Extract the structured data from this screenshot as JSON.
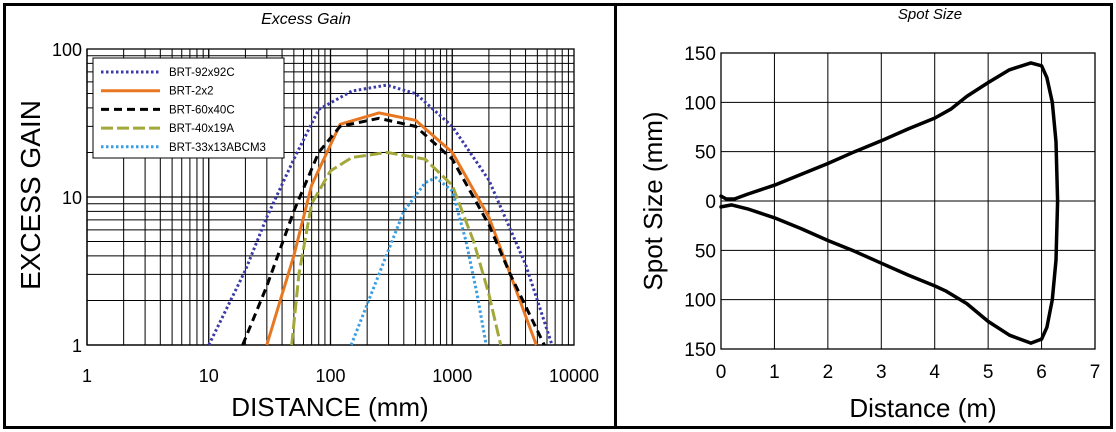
{
  "chart_data": [
    {
      "type": "line",
      "title": "Excess Gain",
      "xlabel": "DISTANCE (mm)",
      "ylabel": "EXCESS GAIN",
      "x_scale": "log",
      "y_scale": "log",
      "xlim": [
        1,
        10000
      ],
      "ylim": [
        1,
        100
      ],
      "x_ticks": [
        "1",
        "10",
        "100",
        "1000",
        "10000"
      ],
      "y_ticks": [
        "1",
        "10",
        "100"
      ],
      "grid": true,
      "legend": "top-left",
      "series": [
        {
          "name": "BRT-92x92C",
          "color": "#3b3ba8",
          "style": "dotted",
          "points": [
            [
              10,
              1
            ],
            [
              20,
              3.2
            ],
            [
              30,
              7.3
            ],
            [
              50,
              18
            ],
            [
              80,
              39
            ],
            [
              150,
              52
            ],
            [
              290,
              57
            ],
            [
              500,
              50
            ],
            [
              1000,
              30
            ],
            [
              2000,
              13
            ],
            [
              4000,
              3.5
            ],
            [
              6600,
              1
            ]
          ]
        },
        {
          "name": "BRT-2x2",
          "color": "#e87722",
          "style": "solid",
          "points": [
            [
              30,
              1
            ],
            [
              40,
              2.2
            ],
            [
              50,
              4
            ],
            [
              70,
              12
            ],
            [
              120,
              31
            ],
            [
              250,
              37
            ],
            [
              500,
              33
            ],
            [
              1000,
              20
            ],
            [
              2000,
              7.3
            ],
            [
              3000,
              3
            ],
            [
              4900,
              1
            ]
          ]
        },
        {
          "name": "BRT-60x40C",
          "color": "#000000",
          "style": "dashed",
          "points": [
            [
              19,
              1
            ],
            [
              30,
              2.5
            ],
            [
              50,
              8
            ],
            [
              80,
              20
            ],
            [
              120,
              30
            ],
            [
              250,
              34
            ],
            [
              500,
              30
            ],
            [
              1000,
              18
            ],
            [
              2000,
              6.5
            ],
            [
              3000,
              3
            ],
            [
              5700,
              1
            ]
          ]
        },
        {
          "name": "BRT-40x19A",
          "color": "#a3a83a",
          "style": "long-dash",
          "points": [
            [
              48,
              1
            ],
            [
              55,
              3
            ],
            [
              70,
              9
            ],
            [
              100,
              15
            ],
            [
              150,
              18.5
            ],
            [
              290,
              20
            ],
            [
              600,
              18
            ],
            [
              1000,
              12
            ],
            [
              1500,
              5
            ],
            [
              2000,
              2.2
            ],
            [
              2500,
              1
            ]
          ]
        },
        {
          "name": "BRT-33x13ABCM3",
          "color": "#3a9ee0",
          "style": "dotted",
          "points": [
            [
              148,
              1
            ],
            [
              250,
              3
            ],
            [
              400,
              8
            ],
            [
              600,
              12.5
            ],
            [
              735,
              13.5
            ],
            [
              1000,
              11
            ],
            [
              1300,
              5
            ],
            [
              1600,
              2.2
            ],
            [
              1900,
              1
            ]
          ]
        }
      ]
    },
    {
      "type": "line",
      "title": "Spot Size",
      "xlabel": "Distance (m)",
      "ylabel": "Spot Size (mm)",
      "xlim": [
        0,
        7
      ],
      "ylim": [
        -150,
        150
      ],
      "x_ticks": [
        "0",
        "1",
        "2",
        "3",
        "4",
        "5",
        "6",
        "7"
      ],
      "y_ticks": [
        "150",
        "100",
        "50",
        "0",
        "50",
        "100",
        "150"
      ],
      "grid": true,
      "series": [
        {
          "color": "#000000",
          "points": [
            [
              0,
              5
            ],
            [
              0.1,
              2
            ],
            [
              0.25,
              2
            ],
            [
              0.5,
              7
            ],
            [
              1,
              16
            ],
            [
              1.5,
              27
            ],
            [
              2,
              38
            ],
            [
              2.5,
              50
            ],
            [
              3,
              61
            ],
            [
              3.5,
              73
            ],
            [
              4,
              84
            ],
            [
              4.3,
              93
            ],
            [
              4.6,
              106
            ],
            [
              5,
              120
            ],
            [
              5.4,
              133
            ],
            [
              5.8,
              140
            ],
            [
              6,
              137
            ],
            [
              6.1,
              125
            ],
            [
              6.2,
              100
            ],
            [
              6.27,
              60
            ],
            [
              6.3,
              0
            ],
            [
              6.27,
              -60
            ],
            [
              6.2,
              -100
            ],
            [
              6.1,
              -128
            ],
            [
              6,
              -140
            ],
            [
              5.8,
              -144
            ],
            [
              5.4,
              -136
            ],
            [
              5,
              -122
            ],
            [
              4.6,
              -104
            ],
            [
              4.2,
              -91
            ],
            [
              4,
              -86
            ],
            [
              3.5,
              -75
            ],
            [
              3,
              -63
            ],
            [
              2.5,
              -51
            ],
            [
              2,
              -40
            ],
            [
              1.5,
              -28
            ],
            [
              1,
              -17
            ],
            [
              0.5,
              -8
            ],
            [
              0.2,
              -4
            ],
            [
              0,
              -6
            ]
          ]
        }
      ]
    }
  ]
}
